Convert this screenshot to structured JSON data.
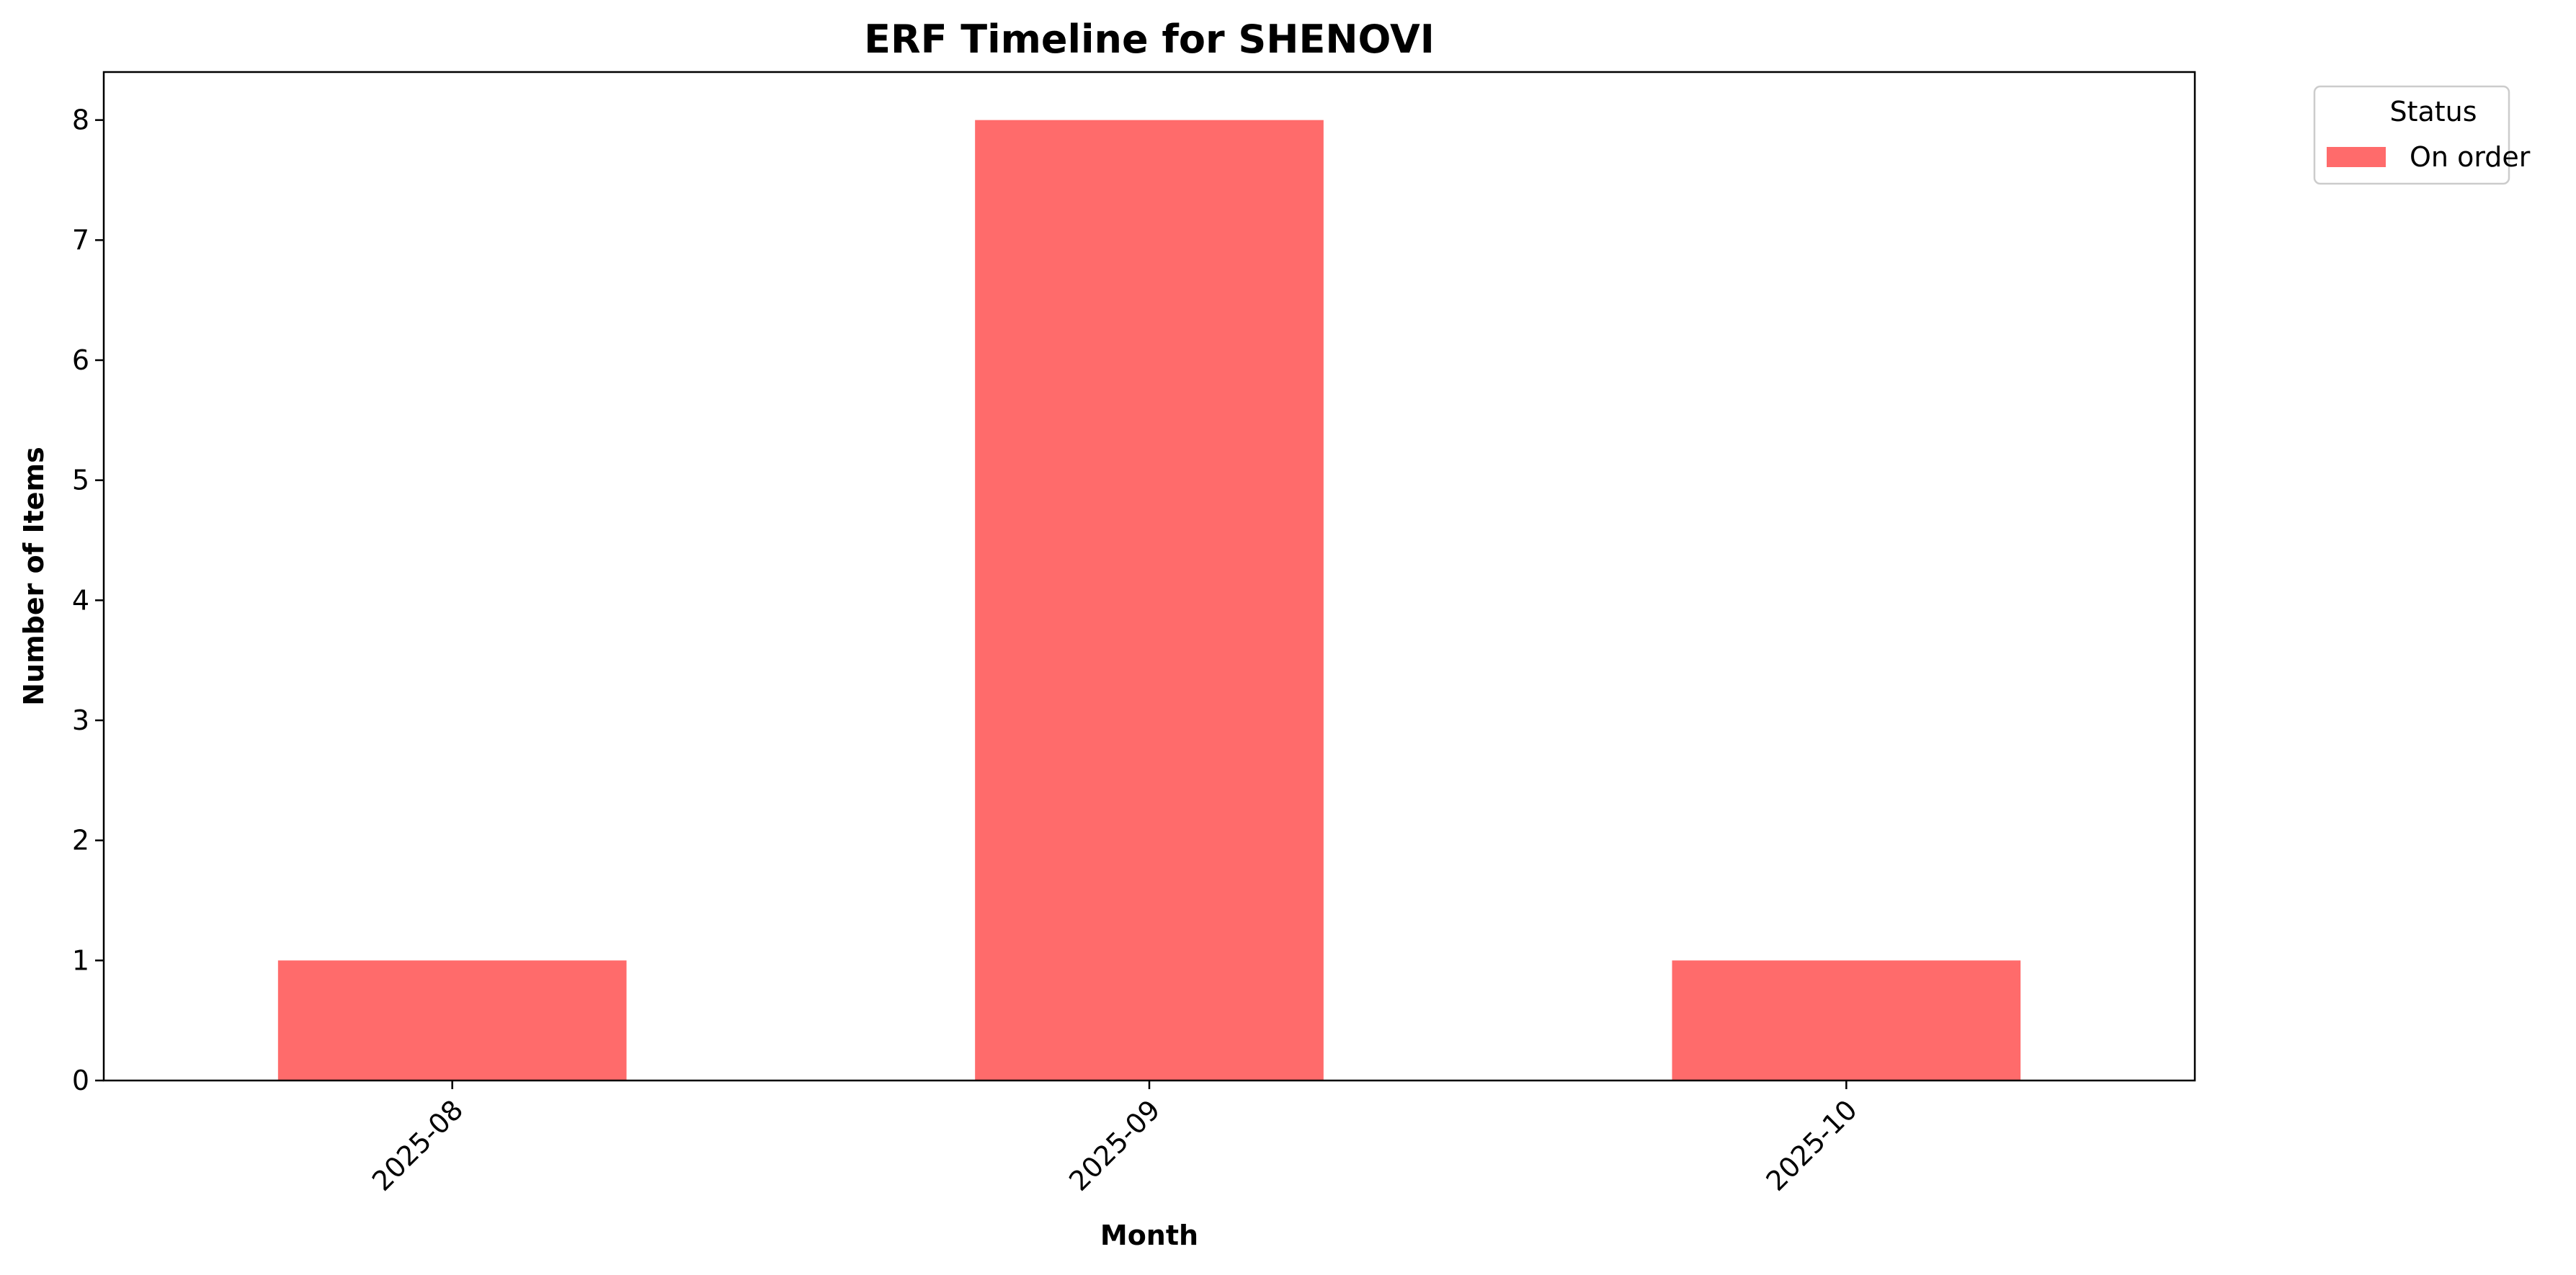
{
  "chart_data": {
    "type": "bar",
    "title": "ERF Timeline for SHENOVI",
    "xlabel": "Month",
    "ylabel": "Number of Items",
    "categories": [
      "2025-08",
      "2025-09",
      "2025-10"
    ],
    "series": [
      {
        "name": "On order",
        "values": [
          1,
          8,
          1
        ],
        "color": "#ff6b6b"
      }
    ],
    "ylim": [
      0,
      8.4
    ],
    "yticks": [
      0,
      1,
      2,
      3,
      4,
      5,
      6,
      7,
      8
    ],
    "grid": false,
    "x_tick_rotation": 45,
    "legend": {
      "title": "Status",
      "placement": "outside-top-right"
    }
  }
}
